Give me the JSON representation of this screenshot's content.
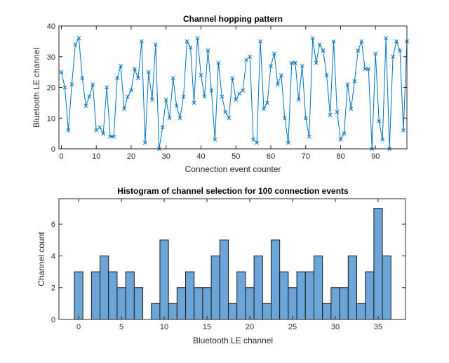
{
  "chart_data": [
    {
      "type": "line",
      "title": "Channel hopping pattern",
      "xlabel": "Connection event counter",
      "ylabel": "Bluetooth LE channel",
      "xlim": [
        -0.7,
        99
      ],
      "ylim": [
        0,
        40
      ],
      "xticks": [
        0,
        10,
        20,
        30,
        40,
        50,
        60,
        70,
        80,
        90
      ],
      "yticks": [
        0,
        10,
        20,
        30,
        40
      ],
      "marker": "x",
      "color": "#0072BD",
      "grid": false,
      "y": [
        25,
        20,
        6,
        21,
        34,
        36,
        23,
        14,
        17,
        21,
        6,
        7,
        5,
        20,
        4,
        4,
        23,
        27,
        13,
        17,
        19,
        26,
        23,
        35,
        2,
        25,
        16,
        34,
        0,
        7,
        16,
        10,
        23,
        14,
        10,
        17,
        35,
        33,
        15,
        36,
        24,
        17,
        32,
        19,
        3,
        28,
        17,
        12,
        10,
        23,
        16,
        18,
        19,
        29,
        30,
        3,
        2,
        35,
        13,
        15,
        27,
        31,
        21,
        24,
        10,
        2,
        28,
        28,
        16,
        27,
        10,
        4,
        36,
        28,
        34,
        32,
        24,
        11,
        35,
        12,
        3,
        5,
        21,
        13,
        22,
        32,
        35,
        26,
        26,
        0,
        31,
        9,
        3,
        36,
        0,
        30,
        35,
        32,
        6,
        35
      ]
    },
    {
      "type": "bar",
      "title": "Histogram of channel selection for 100 connection events",
      "xlabel": "Bluetooth LE channel",
      "ylabel": "Channel count",
      "xlim": [
        -2.3,
        38.2
      ],
      "ylim": [
        0,
        7.6
      ],
      "xticks": [
        0,
        5,
        10,
        15,
        20,
        25,
        30,
        35
      ],
      "yticks": [
        0,
        2,
        4,
        6
      ],
      "color": "#6CA6D9",
      "edgecolor": "#1a1a1a",
      "grid": false,
      "categories": [
        0,
        1,
        2,
        3,
        4,
        5,
        6,
        7,
        8,
        9,
        10,
        11,
        12,
        13,
        14,
        15,
        16,
        17,
        18,
        19,
        20,
        21,
        22,
        23,
        24,
        25,
        26,
        27,
        28,
        29,
        30,
        31,
        32,
        33,
        34,
        35,
        36
      ],
      "values": [
        3,
        0,
        3,
        4,
        3,
        2,
        3,
        2,
        0,
        1,
        5,
        1,
        2,
        3,
        2,
        2,
        4,
        5,
        1,
        3,
        2,
        4,
        1,
        5,
        3,
        2,
        3,
        3,
        4,
        1,
        2,
        2,
        4,
        1,
        3,
        7,
        4
      ]
    }
  ]
}
